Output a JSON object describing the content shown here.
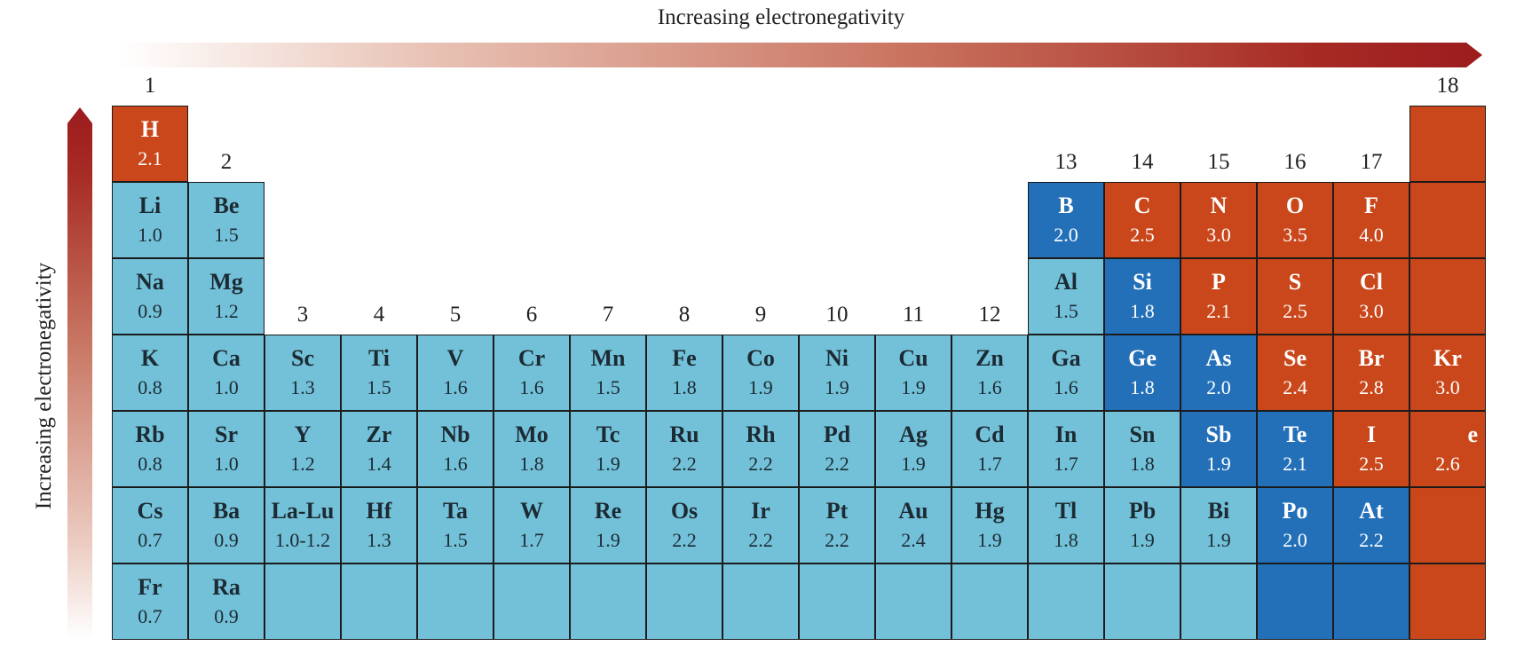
{
  "labels": {
    "top_axis": "Increasing electronegativity",
    "side_axis": "Increasing electronegativity"
  },
  "colors": {
    "metal": "#73c1d8",
    "metalloid": "#2370b9",
    "nonmetal": "#c9471a",
    "arrow": "#9c1c1e"
  },
  "groups": [
    "1",
    "2",
    "3",
    "4",
    "5",
    "6",
    "7",
    "8",
    "9",
    "10",
    "11",
    "12",
    "13",
    "14",
    "15",
    "16",
    "17",
    "18"
  ],
  "elements": [
    {
      "symbol": "H",
      "en": "2.1",
      "period": 1,
      "group": 1,
      "kind": "orange"
    },
    {
      "symbol": "",
      "en": "",
      "period": 1,
      "group": 18,
      "kind": "orange"
    },
    {
      "symbol": "Li",
      "en": "1.0",
      "period": 2,
      "group": 1,
      "kind": "light"
    },
    {
      "symbol": "Be",
      "en": "1.5",
      "period": 2,
      "group": 2,
      "kind": "light"
    },
    {
      "symbol": "B",
      "en": "2.0",
      "period": 2,
      "group": 13,
      "kind": "blue"
    },
    {
      "symbol": "C",
      "en": "2.5",
      "period": 2,
      "group": 14,
      "kind": "orange"
    },
    {
      "symbol": "N",
      "en": "3.0",
      "period": 2,
      "group": 15,
      "kind": "orange"
    },
    {
      "symbol": "O",
      "en": "3.5",
      "period": 2,
      "group": 16,
      "kind": "orange"
    },
    {
      "symbol": "F",
      "en": "4.0",
      "period": 2,
      "group": 17,
      "kind": "orange"
    },
    {
      "symbol": "",
      "en": "",
      "period": 2,
      "group": 18,
      "kind": "orange"
    },
    {
      "symbol": "Na",
      "en": "0.9",
      "period": 3,
      "group": 1,
      "kind": "light"
    },
    {
      "symbol": "Mg",
      "en": "1.2",
      "period": 3,
      "group": 2,
      "kind": "light"
    },
    {
      "symbol": "Al",
      "en": "1.5",
      "period": 3,
      "group": 13,
      "kind": "light"
    },
    {
      "symbol": "Si",
      "en": "1.8",
      "period": 3,
      "group": 14,
      "kind": "blue"
    },
    {
      "symbol": "P",
      "en": "2.1",
      "period": 3,
      "group": 15,
      "kind": "orange"
    },
    {
      "symbol": "S",
      "en": "2.5",
      "period": 3,
      "group": 16,
      "kind": "orange"
    },
    {
      "symbol": "Cl",
      "en": "3.0",
      "period": 3,
      "group": 17,
      "kind": "orange"
    },
    {
      "symbol": "",
      "en": "",
      "period": 3,
      "group": 18,
      "kind": "orange"
    },
    {
      "symbol": "K",
      "en": "0.8",
      "period": 4,
      "group": 1,
      "kind": "light"
    },
    {
      "symbol": "Ca",
      "en": "1.0",
      "period": 4,
      "group": 2,
      "kind": "light"
    },
    {
      "symbol": "Sc",
      "en": "1.3",
      "period": 4,
      "group": 3,
      "kind": "light"
    },
    {
      "symbol": "Ti",
      "en": "1.5",
      "period": 4,
      "group": 4,
      "kind": "light"
    },
    {
      "symbol": "V",
      "en": "1.6",
      "period": 4,
      "group": 5,
      "kind": "light"
    },
    {
      "symbol": "Cr",
      "en": "1.6",
      "period": 4,
      "group": 6,
      "kind": "light"
    },
    {
      "symbol": "Mn",
      "en": "1.5",
      "period": 4,
      "group": 7,
      "kind": "light"
    },
    {
      "symbol": "Fe",
      "en": "1.8",
      "period": 4,
      "group": 8,
      "kind": "light"
    },
    {
      "symbol": "Co",
      "en": "1.9",
      "period": 4,
      "group": 9,
      "kind": "light"
    },
    {
      "symbol": "Ni",
      "en": "1.9",
      "period": 4,
      "group": 10,
      "kind": "light"
    },
    {
      "symbol": "Cu",
      "en": "1.9",
      "period": 4,
      "group": 11,
      "kind": "light"
    },
    {
      "symbol": "Zn",
      "en": "1.6",
      "period": 4,
      "group": 12,
      "kind": "light"
    },
    {
      "symbol": "Ga",
      "en": "1.6",
      "period": 4,
      "group": 13,
      "kind": "light"
    },
    {
      "symbol": "Ge",
      "en": "1.8",
      "period": 4,
      "group": 14,
      "kind": "blue"
    },
    {
      "symbol": "As",
      "en": "2.0",
      "period": 4,
      "group": 15,
      "kind": "blue"
    },
    {
      "symbol": "Se",
      "en": "2.4",
      "period": 4,
      "group": 16,
      "kind": "orange"
    },
    {
      "symbol": "Br",
      "en": "2.8",
      "period": 4,
      "group": 17,
      "kind": "orange"
    },
    {
      "symbol": "Kr",
      "en": "3.0",
      "period": 4,
      "group": 18,
      "kind": "orange"
    },
    {
      "symbol": "Rb",
      "en": "0.8",
      "period": 5,
      "group": 1,
      "kind": "light"
    },
    {
      "symbol": "Sr",
      "en": "1.0",
      "period": 5,
      "group": 2,
      "kind": "light"
    },
    {
      "symbol": "Y",
      "en": "1.2",
      "period": 5,
      "group": 3,
      "kind": "light"
    },
    {
      "symbol": "Zr",
      "en": "1.4",
      "period": 5,
      "group": 4,
      "kind": "light"
    },
    {
      "symbol": "Nb",
      "en": "1.6",
      "period": 5,
      "group": 5,
      "kind": "light"
    },
    {
      "symbol": "Mo",
      "en": "1.8",
      "period": 5,
      "group": 6,
      "kind": "light"
    },
    {
      "symbol": "Tc",
      "en": "1.9",
      "period": 5,
      "group": 7,
      "kind": "light"
    },
    {
      "symbol": "Ru",
      "en": "2.2",
      "period": 5,
      "group": 8,
      "kind": "light"
    },
    {
      "symbol": "Rh",
      "en": "2.2",
      "period": 5,
      "group": 9,
      "kind": "light"
    },
    {
      "symbol": "Pd",
      "en": "2.2",
      "period": 5,
      "group": 10,
      "kind": "light"
    },
    {
      "symbol": "Ag",
      "en": "1.9",
      "period": 5,
      "group": 11,
      "kind": "light"
    },
    {
      "symbol": "Cd",
      "en": "1.7",
      "period": 5,
      "group": 12,
      "kind": "light"
    },
    {
      "symbol": "In",
      "en": "1.7",
      "period": 5,
      "group": 13,
      "kind": "light"
    },
    {
      "symbol": "Sn",
      "en": "1.8",
      "period": 5,
      "group": 14,
      "kind": "light"
    },
    {
      "symbol": "Sb",
      "en": "1.9",
      "period": 5,
      "group": 15,
      "kind": "blue"
    },
    {
      "symbol": "Te",
      "en": "2.1",
      "period": 5,
      "group": 16,
      "kind": "blue"
    },
    {
      "symbol": "I",
      "en": "2.5",
      "period": 5,
      "group": 17,
      "kind": "orange"
    },
    {
      "symbol": "e",
      "en": "2.6",
      "period": 5,
      "group": 18,
      "kind": "orange",
      "align": "right"
    },
    {
      "symbol": "Cs",
      "en": "0.7",
      "period": 6,
      "group": 1,
      "kind": "light"
    },
    {
      "symbol": "Ba",
      "en": "0.9",
      "period": 6,
      "group": 2,
      "kind": "light"
    },
    {
      "symbol": "La-Lu",
      "en": "1.0-1.2",
      "period": 6,
      "group": 3,
      "kind": "light"
    },
    {
      "symbol": "Hf",
      "en": "1.3",
      "period": 6,
      "group": 4,
      "kind": "light"
    },
    {
      "symbol": "Ta",
      "en": "1.5",
      "period": 6,
      "group": 5,
      "kind": "light"
    },
    {
      "symbol": "W",
      "en": "1.7",
      "period": 6,
      "group": 6,
      "kind": "light"
    },
    {
      "symbol": "Re",
      "en": "1.9",
      "period": 6,
      "group": 7,
      "kind": "light"
    },
    {
      "symbol": "Os",
      "en": "2.2",
      "period": 6,
      "group": 8,
      "kind": "light"
    },
    {
      "symbol": "Ir",
      "en": "2.2",
      "period": 6,
      "group": 9,
      "kind": "light"
    },
    {
      "symbol": "Pt",
      "en": "2.2",
      "period": 6,
      "group": 10,
      "kind": "light"
    },
    {
      "symbol": "Au",
      "en": "2.4",
      "period": 6,
      "group": 11,
      "kind": "light"
    },
    {
      "symbol": "Hg",
      "en": "1.9",
      "period": 6,
      "group": 12,
      "kind": "light"
    },
    {
      "symbol": "Tl",
      "en": "1.8",
      "period": 6,
      "group": 13,
      "kind": "light"
    },
    {
      "symbol": "Pb",
      "en": "1.9",
      "period": 6,
      "group": 14,
      "kind": "light"
    },
    {
      "symbol": "Bi",
      "en": "1.9",
      "period": 6,
      "group": 15,
      "kind": "light"
    },
    {
      "symbol": "Po",
      "en": "2.0",
      "period": 6,
      "group": 16,
      "kind": "blue"
    },
    {
      "symbol": "At",
      "en": "2.2",
      "period": 6,
      "group": 17,
      "kind": "blue"
    },
    {
      "symbol": "",
      "en": "",
      "period": 6,
      "group": 18,
      "kind": "orange"
    },
    {
      "symbol": "Fr",
      "en": "0.7",
      "period": 7,
      "group": 1,
      "kind": "light"
    },
    {
      "symbol": "Ra",
      "en": "0.9",
      "period": 7,
      "group": 2,
      "kind": "light"
    },
    {
      "symbol": "",
      "en": "",
      "period": 7,
      "group": 3,
      "kind": "light"
    },
    {
      "symbol": "",
      "en": "",
      "period": 7,
      "group": 4,
      "kind": "light"
    },
    {
      "symbol": "",
      "en": "",
      "period": 7,
      "group": 5,
      "kind": "light"
    },
    {
      "symbol": "",
      "en": "",
      "period": 7,
      "group": 6,
      "kind": "light"
    },
    {
      "symbol": "",
      "en": "",
      "period": 7,
      "group": 7,
      "kind": "light"
    },
    {
      "symbol": "",
      "en": "",
      "period": 7,
      "group": 8,
      "kind": "light"
    },
    {
      "symbol": "",
      "en": "",
      "period": 7,
      "group": 9,
      "kind": "light"
    },
    {
      "symbol": "",
      "en": "",
      "period": 7,
      "group": 10,
      "kind": "light"
    },
    {
      "symbol": "",
      "en": "",
      "period": 7,
      "group": 11,
      "kind": "light"
    },
    {
      "symbol": "",
      "en": "",
      "period": 7,
      "group": 12,
      "kind": "light"
    },
    {
      "symbol": "",
      "en": "",
      "period": 7,
      "group": 13,
      "kind": "light"
    },
    {
      "symbol": "",
      "en": "",
      "period": 7,
      "group": 14,
      "kind": "light"
    },
    {
      "symbol": "",
      "en": "",
      "period": 7,
      "group": 15,
      "kind": "light"
    },
    {
      "symbol": "",
      "en": "",
      "period": 7,
      "group": 16,
      "kind": "blue"
    },
    {
      "symbol": "",
      "en": "",
      "period": 7,
      "group": 17,
      "kind": "blue"
    },
    {
      "symbol": "",
      "en": "",
      "period": 7,
      "group": 18,
      "kind": "orange"
    }
  ]
}
